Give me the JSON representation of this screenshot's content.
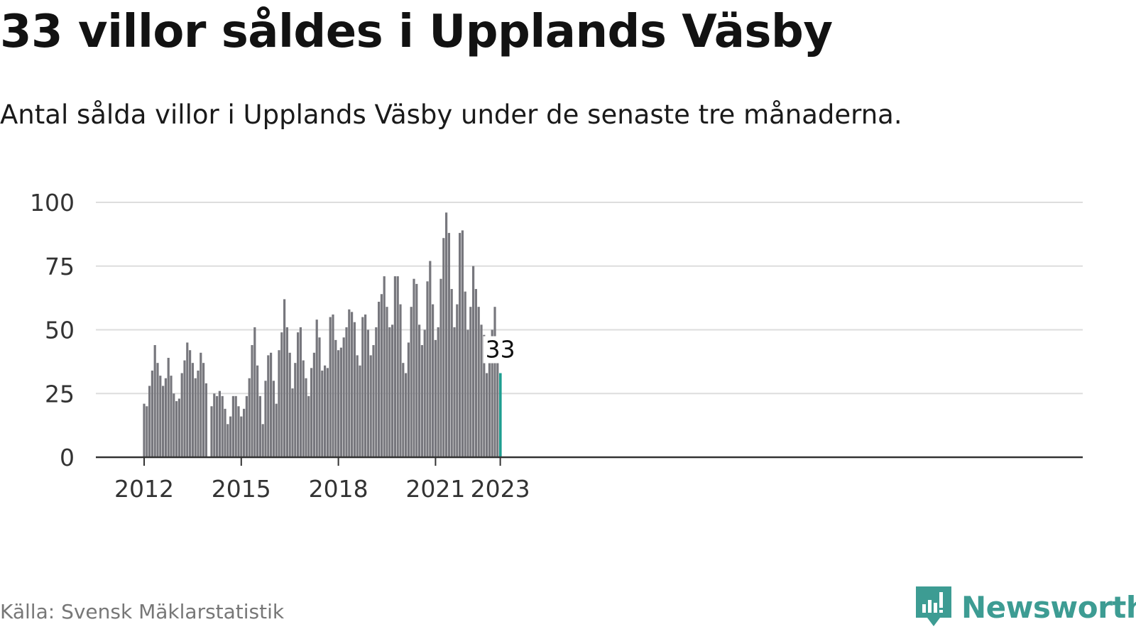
{
  "header": {
    "title": "33 villor såldes i Upplands Väsby",
    "subtitle": "Antal sålda villor i Upplands Väsby under de senaste tre månaderna."
  },
  "footer": {
    "source": "Källa: Svensk Mäklarstatistik",
    "brand": "Newsworthy"
  },
  "colors": {
    "bar": "#77777d",
    "highlight": "#1f9e91",
    "brand": "#3d9c93",
    "grid": "#dddddd"
  },
  "icons": {
    "brand_logo": "newsworthy-logo-icon"
  },
  "chart_data": {
    "type": "bar",
    "title": "33 villor såldes i Upplands Väsby",
    "subtitle": "Antal sålda villor i Upplands Väsby under de senaste tre månaderna.",
    "xlabel": "",
    "ylabel": "",
    "ylim": [
      0,
      100
    ],
    "yticks": [
      "0",
      "25",
      "50",
      "75",
      "100"
    ],
    "xticks": [
      {
        "label": "2012",
        "index": 0
      },
      {
        "label": "2015",
        "index": 36
      },
      {
        "label": "2018",
        "index": 72
      },
      {
        "label": "2021",
        "index": 108
      },
      {
        "label": "2023",
        "index": 132
      }
    ],
    "grid": true,
    "legend": "none",
    "x_start": "2012-01",
    "x_step": "month",
    "values": [
      21,
      20,
      28,
      34,
      44,
      37,
      32,
      28,
      31,
      39,
      32,
      25,
      22,
      23,
      33,
      38,
      45,
      42,
      37,
      31,
      34,
      41,
      37,
      29,
      null,
      20,
      25,
      24,
      26,
      24,
      19,
      13,
      16,
      24,
      24,
      20,
      16,
      19,
      24,
      31,
      44,
      51,
      36,
      24,
      13,
      30,
      40,
      41,
      30,
      21,
      42,
      49,
      62,
      51,
      41,
      27,
      37,
      49,
      51,
      38,
      31,
      24,
      35,
      41,
      54,
      47,
      34,
      36,
      35,
      55,
      56,
      46,
      42,
      43,
      47,
      51,
      58,
      57,
      53,
      40,
      36,
      55,
      56,
      50,
      40,
      44,
      51,
      61,
      64,
      71,
      59,
      51,
      52,
      71,
      71,
      60,
      37,
      33,
      45,
      59,
      70,
      68,
      52,
      44,
      50,
      69,
      77,
      60,
      46,
      51,
      70,
      86,
      96,
      88,
      66,
      51,
      60,
      88,
      89,
      65,
      50,
      59,
      75,
      66,
      59,
      52,
      48,
      33,
      44,
      50,
      59,
      37,
      33
    ],
    "highlight_index": 132,
    "highlight_label": "33"
  }
}
